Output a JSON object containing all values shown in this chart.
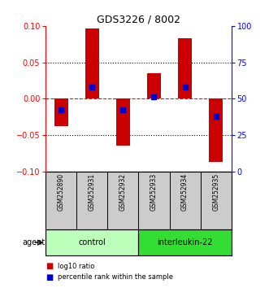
{
  "title": "GDS3226 / 8002",
  "samples": [
    "GSM252890",
    "GSM252931",
    "GSM252932",
    "GSM252933",
    "GSM252934",
    "GSM252935"
  ],
  "log10_ratio": [
    -0.038,
    0.097,
    -0.065,
    0.035,
    0.083,
    -0.087
  ],
  "percentile_rank": [
    0.42,
    0.58,
    0.42,
    0.51,
    0.58,
    0.38
  ],
  "groups": [
    {
      "label": "control",
      "samples": [
        0,
        1,
        2
      ],
      "color": "#bbffbb"
    },
    {
      "label": "interleukin-22",
      "samples": [
        3,
        4,
        5
      ],
      "color": "#33dd33"
    }
  ],
  "bar_color": "#cc0000",
  "percentile_color": "#0000cc",
  "ylim": [
    -0.1,
    0.1
  ],
  "yticks_left": [
    -0.1,
    -0.05,
    0,
    0.05,
    0.1
  ],
  "yticks_right": [
    0,
    25,
    50,
    75,
    100
  ],
  "background_color": "#ffffff",
  "agent_label": "agent",
  "legend_items": [
    {
      "label": "log10 ratio",
      "color": "#cc0000"
    },
    {
      "label": "percentile rank within the sample",
      "color": "#0000cc"
    }
  ]
}
